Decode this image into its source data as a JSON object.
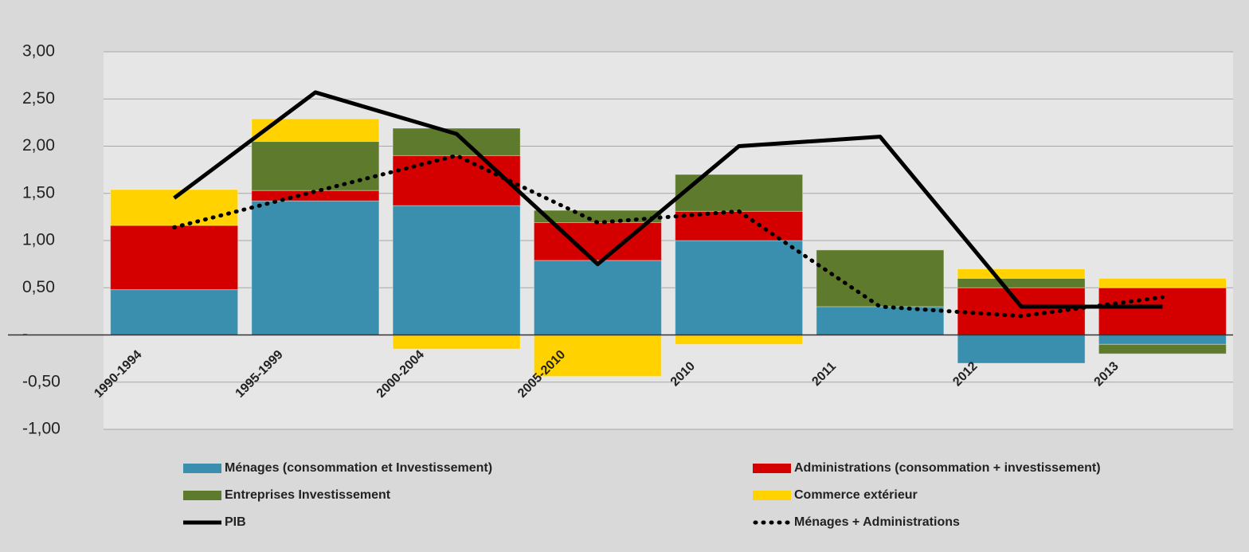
{
  "chart_data": {
    "type": "bar",
    "stacked": true,
    "categories": [
      "1990-1994",
      "1995-1999",
      "2000-2004",
      "2005-2010",
      "2010",
      "2011",
      "2012",
      "2013"
    ],
    "series": [
      {
        "name": "Ménages (consommation et Investissement)",
        "color": "#3a8fae",
        "values": [
          0.48,
          1.42,
          1.37,
          0.79,
          1.0,
          0.3,
          -0.3,
          -0.1
        ]
      },
      {
        "name": "Administrations (consommation + investissement)",
        "color": "#d40000",
        "values": [
          0.68,
          0.11,
          0.53,
          0.4,
          0.31,
          0,
          0.5,
          0.5
        ]
      },
      {
        "name": "Entreprises Investissement",
        "color": "#5e7a2c",
        "values": [
          0,
          0.52,
          0.29,
          0.13,
          0.39,
          0.6,
          0.1,
          -0.1
        ]
      },
      {
        "name": "Commerce extérieur",
        "color": "#ffd200",
        "values": [
          0.38,
          0.24,
          -0.15,
          -0.44,
          -0.1,
          0,
          0.1,
          0.1
        ]
      },
      {
        "name": "PIB",
        "color": "#000000",
        "type": "line",
        "values": [
          1.45,
          2.57,
          2.13,
          0.75,
          2.0,
          2.1,
          0.3,
          0.3
        ]
      },
      {
        "name": "Ménages + Administrations",
        "color": "#000000",
        "type": "line",
        "dashed": true,
        "values": [
          1.14,
          1.52,
          1.9,
          1.19,
          1.31,
          0.3,
          0.2,
          0.4
        ]
      }
    ],
    "ylim": [
      -1,
      3
    ],
    "yticks": [
      {
        "value": -1,
        "label": "-1,00"
      },
      {
        "value": -0.5,
        "label": "-0,50"
      },
      {
        "value": 0,
        "label": "-"
      },
      {
        "value": 0.5,
        "label": "0,50"
      },
      {
        "value": 1,
        "label": "1,00"
      },
      {
        "value": 1.5,
        "label": "1,50"
      },
      {
        "value": 2,
        "label": "2,00"
      },
      {
        "value": 2.5,
        "label": "2,50"
      },
      {
        "value": 3,
        "label": "3,00"
      }
    ],
    "grid": true
  }
}
